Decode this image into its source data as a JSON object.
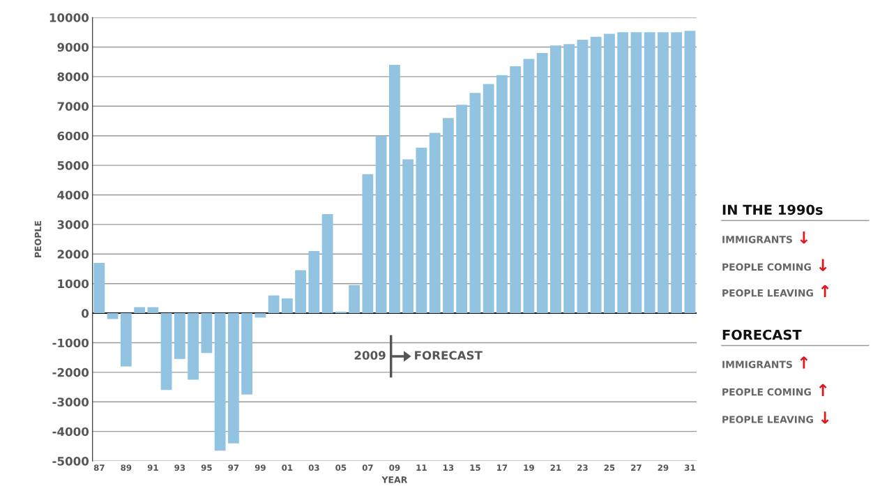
{
  "chart_data": {
    "type": "bar",
    "xlabel": "YEAR",
    "ylabel": "PEOPLE",
    "categories": [
      "87",
      null,
      "89",
      null,
      "91",
      null,
      "93",
      null,
      "95",
      null,
      "97",
      null,
      "99",
      null,
      "01",
      null,
      "03",
      null,
      "05",
      null,
      "07",
      null,
      "09",
      null,
      "11",
      null,
      "13",
      null,
      "15",
      null,
      "17",
      null,
      "19",
      null,
      "21",
      null,
      "23",
      null,
      "25",
      null,
      "27",
      null,
      "29",
      null,
      "31"
    ],
    "values": [
      1700,
      -200,
      -1800,
      200,
      200,
      -2600,
      -1550,
      -2250,
      -1350,
      -4650,
      -4400,
      -2750,
      -150,
      600,
      500,
      1450,
      2100,
      3350,
      50,
      950,
      4700,
      6000,
      8400,
      5200,
      5600,
      6100,
      6600,
      7050,
      7450,
      7750,
      8050,
      8350,
      8600,
      8800,
      9050,
      9100,
      9250,
      9350,
      9450,
      9500,
      9500,
      9500,
      9500,
      9500,
      9550
    ],
    "color": "#92c3e0",
    "ylim": [
      -5000,
      10000
    ],
    "yticks": [
      -5000,
      -4000,
      -3000,
      -2000,
      -1000,
      0,
      1000,
      2000,
      3000,
      4000,
      5000,
      6000,
      7000,
      8000,
      9000,
      10000
    ],
    "grid": "y",
    "annotations": [
      "2009",
      "FORECAST",
      "IN THE 1990s",
      "IMMIGRANTS ↓",
      "PEOPLE COMING ↓",
      "PEOPLE LEAVING ↑",
      "FORECAST",
      "IMMIGRANTS ↑",
      "PEOPLE COMING ↑",
      "PEOPLE LEAVING ↓"
    ]
  }
}
